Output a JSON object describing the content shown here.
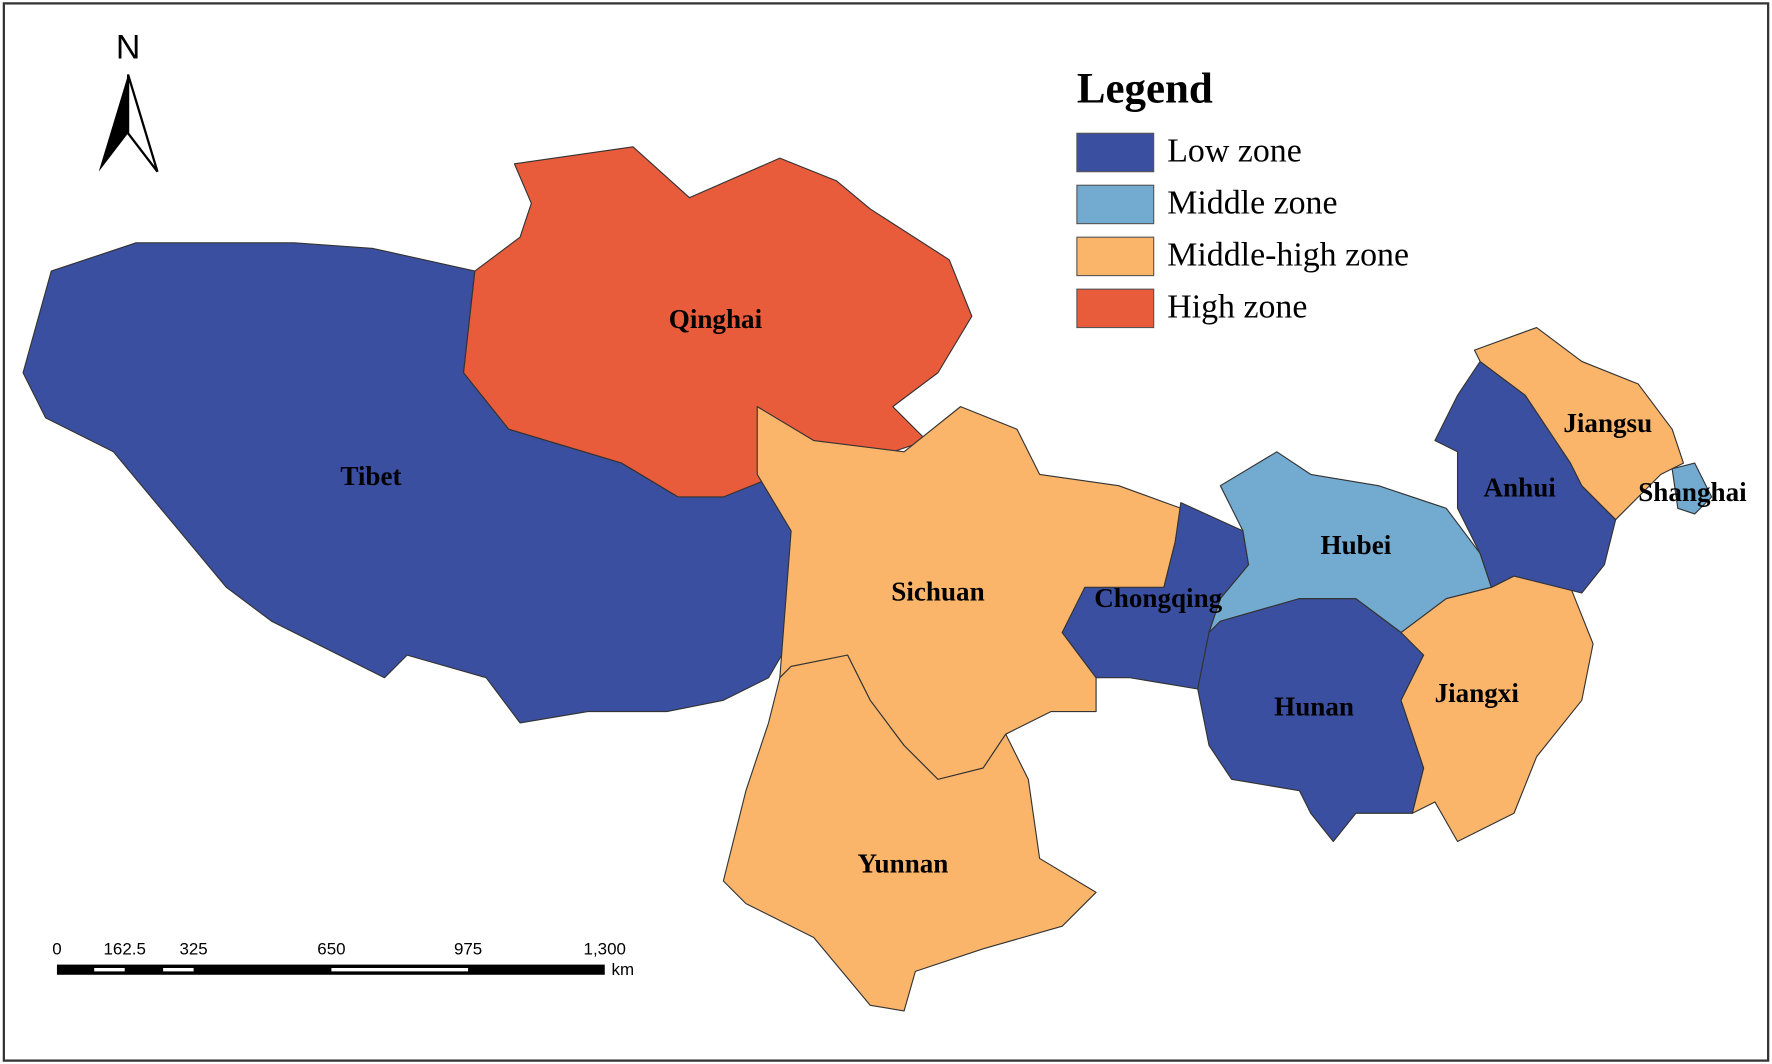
{
  "north": "N",
  "legend": {
    "title": "Legend",
    "items": [
      {
        "label": "Low zone",
        "color": "#3b4fa1"
      },
      {
        "label": "Middle zone",
        "color": "#72aad0"
      },
      {
        "label": "Middle-high zone",
        "color": "#fab56b"
      },
      {
        "label": "High zone",
        "color": "#e85b3b"
      }
    ]
  },
  "regions": [
    {
      "name": "Tibet",
      "zone": 0
    },
    {
      "name": "Qinghai",
      "zone": 3
    },
    {
      "name": "Sichuan",
      "zone": 2
    },
    {
      "name": "Yunnan",
      "zone": 2
    },
    {
      "name": "Chongqing",
      "zone": 0
    },
    {
      "name": "Hubei",
      "zone": 1
    },
    {
      "name": "Hunan",
      "zone": 0
    },
    {
      "name": "Jiangxi",
      "zone": 2
    },
    {
      "name": "Anhui",
      "zone": 0
    },
    {
      "name": "Jiangsu",
      "zone": 2
    },
    {
      "name": "Shanghai",
      "zone": 1
    }
  ],
  "scale_bar": {
    "labels": [
      "0",
      "162.5",
      "325",
      "650",
      "975",
      "1,300"
    ],
    "unit": "km"
  }
}
